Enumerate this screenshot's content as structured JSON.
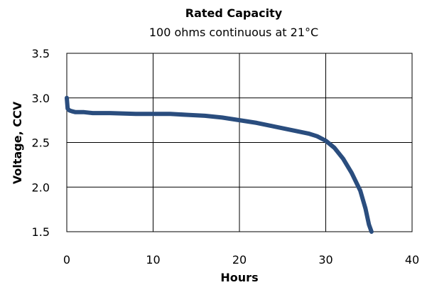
{
  "chart_data": {
    "type": "line",
    "title": "Rated Capacity",
    "subtitle": "100 ohms continuous at 21°C",
    "xlabel": "Hours",
    "ylabel": "Voltage, CCV",
    "xlim": [
      0,
      40
    ],
    "ylim": [
      1.5,
      3.5
    ],
    "x_ticks": [
      "0",
      "10",
      "20",
      "30",
      "40"
    ],
    "y_ticks": [
      "3.5",
      "3.0",
      "2.5",
      "2.0",
      "1.5"
    ],
    "grid": true,
    "legend": "none",
    "series": [
      {
        "color": "#2a4d7e",
        "x": [
          0,
          0.1,
          0.3,
          0.6,
          1,
          2,
          3,
          5,
          8,
          10,
          12,
          14,
          16,
          18,
          20,
          22,
          24,
          26,
          28,
          29,
          30,
          31,
          32,
          33,
          34,
          34.6,
          35,
          35.3
        ],
        "y": [
          3.0,
          2.88,
          2.86,
          2.85,
          2.84,
          2.84,
          2.83,
          2.83,
          2.82,
          2.82,
          2.82,
          2.81,
          2.8,
          2.78,
          2.75,
          2.72,
          2.68,
          2.64,
          2.6,
          2.57,
          2.52,
          2.44,
          2.32,
          2.16,
          1.96,
          1.76,
          1.58,
          1.5
        ]
      }
    ]
  }
}
